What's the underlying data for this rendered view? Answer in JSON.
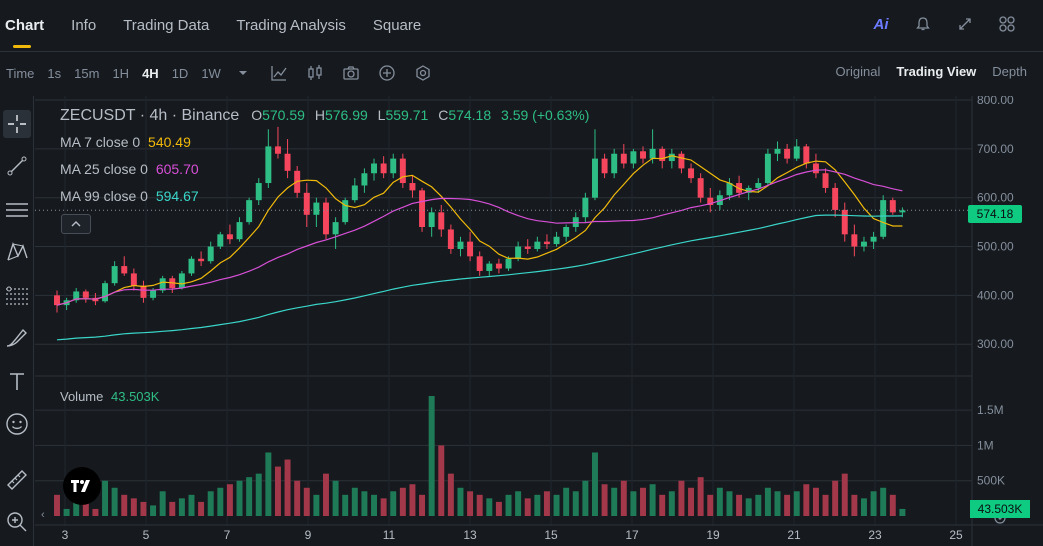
{
  "tabs": [
    {
      "label": "Chart",
      "active": true
    },
    {
      "label": "Info",
      "active": false
    },
    {
      "label": "Trading Data",
      "active": false
    },
    {
      "label": "Trading Analysis",
      "active": false
    },
    {
      "label": "Square",
      "active": false
    }
  ],
  "top_icons": {
    "ai_label": "Ai",
    "bell": "bell-icon",
    "expand": "expand-icon",
    "layout": "layout-icon"
  },
  "toolbar": {
    "intervals": [
      "Time",
      "1s",
      "15m",
      "1H",
      "4H",
      "1D",
      "1W"
    ],
    "active_interval": "4H",
    "views": [
      {
        "label": "Original",
        "active": false
      },
      {
        "label": "Trading View",
        "active": true
      },
      {
        "label": "Depth",
        "active": false
      }
    ]
  },
  "legend": {
    "symbol": "ZECUSDT · 4h · Binance",
    "open_label": "O",
    "open": "570.59",
    "high_label": "H",
    "high": "576.99",
    "low_label": "L",
    "low": "559.71",
    "close_label": "C",
    "close": "574.18",
    "change": "3.59 (+0.63%)",
    "ma7_label": "MA 7 close 0",
    "ma7": "540.49",
    "ma25_label": "MA 25 close 0",
    "ma25": "605.70",
    "ma99_label": "MA 99 close 0",
    "ma99": "594.67",
    "volume_label": "Volume",
    "volume": "43.503K"
  },
  "colors": {
    "up": "#2ebd85",
    "down": "#f6465d",
    "ma7": "#f0b90b",
    "ma25": "#d64fd6",
    "ma99": "#3ad5c8",
    "accent": "#f0b90b"
  },
  "price_tag": "574.18",
  "volume_tag": "43.503K",
  "chart_data": {
    "type": "candlestick",
    "price_axis": [
      "800.00",
      "700.00",
      "600.00",
      "500.00",
      "400.00",
      "300.00"
    ],
    "volume_axis": [
      "1.5M",
      "1M",
      "500K"
    ],
    "x_ticks": [
      "3",
      "5",
      "7",
      "9",
      "11",
      "13",
      "15",
      "17",
      "19",
      "21",
      "23",
      "25"
    ],
    "ylim": [
      280,
      800
    ],
    "current_price": 574.18,
    "candles": [
      [
        400,
        410,
        365,
        380
      ],
      [
        380,
        395,
        370,
        390
      ],
      [
        390,
        415,
        385,
        408
      ],
      [
        408,
        412,
        385,
        395
      ],
      [
        395,
        405,
        380,
        388
      ],
      [
        388,
        430,
        385,
        425
      ],
      [
        425,
        470,
        420,
        460
      ],
      [
        460,
        480,
        440,
        445
      ],
      [
        445,
        455,
        410,
        420
      ],
      [
        420,
        430,
        385,
        395
      ],
      [
        395,
        415,
        390,
        410
      ],
      [
        410,
        440,
        405,
        435
      ],
      [
        435,
        440,
        405,
        415
      ],
      [
        415,
        450,
        412,
        445
      ],
      [
        445,
        480,
        440,
        475
      ],
      [
        475,
        490,
        460,
        470
      ],
      [
        470,
        510,
        465,
        500
      ],
      [
        500,
        530,
        495,
        525
      ],
      [
        525,
        545,
        505,
        515
      ],
      [
        515,
        560,
        510,
        550
      ],
      [
        550,
        600,
        545,
        595
      ],
      [
        595,
        640,
        585,
        630
      ],
      [
        630,
        740,
        620,
        705
      ],
      [
        705,
        745,
        680,
        690
      ],
      [
        690,
        720,
        640,
        655
      ],
      [
        655,
        665,
        600,
        610
      ],
      [
        610,
        630,
        540,
        565
      ],
      [
        565,
        600,
        540,
        590
      ],
      [
        590,
        600,
        515,
        525
      ],
      [
        525,
        560,
        495,
        550
      ],
      [
        550,
        600,
        545,
        595
      ],
      [
        595,
        640,
        590,
        625
      ],
      [
        625,
        660,
        610,
        650
      ],
      [
        650,
        680,
        635,
        670
      ],
      [
        670,
        685,
        640,
        650
      ],
      [
        650,
        690,
        640,
        680
      ],
      [
        680,
        690,
        620,
        630
      ],
      [
        630,
        645,
        600,
        615
      ],
      [
        615,
        620,
        530,
        540
      ],
      [
        540,
        580,
        520,
        570
      ],
      [
        570,
        585,
        520,
        535
      ],
      [
        535,
        545,
        485,
        495
      ],
      [
        495,
        520,
        480,
        510
      ],
      [
        510,
        530,
        470,
        480
      ],
      [
        480,
        490,
        440,
        450
      ],
      [
        450,
        470,
        440,
        465
      ],
      [
        465,
        475,
        445,
        455
      ],
      [
        455,
        480,
        450,
        475
      ],
      [
        475,
        510,
        470,
        500
      ],
      [
        500,
        515,
        485,
        495
      ],
      [
        495,
        520,
        490,
        510
      ],
      [
        510,
        525,
        495,
        505
      ],
      [
        505,
        530,
        500,
        520
      ],
      [
        520,
        545,
        510,
        540
      ],
      [
        540,
        570,
        530,
        560
      ],
      [
        560,
        610,
        550,
        600
      ],
      [
        600,
        740,
        595,
        680
      ],
      [
        680,
        690,
        640,
        650
      ],
      [
        650,
        700,
        640,
        690
      ],
      [
        690,
        710,
        660,
        670
      ],
      [
        670,
        700,
        660,
        695
      ],
      [
        695,
        705,
        670,
        680
      ],
      [
        680,
        740,
        670,
        700
      ],
      [
        700,
        705,
        660,
        675
      ],
      [
        675,
        700,
        660,
        690
      ],
      [
        690,
        695,
        650,
        660
      ],
      [
        660,
        670,
        630,
        640
      ],
      [
        640,
        650,
        590,
        600
      ],
      [
        600,
        620,
        570,
        585
      ],
      [
        585,
        615,
        575,
        605
      ],
      [
        605,
        640,
        595,
        630
      ],
      [
        630,
        645,
        600,
        610
      ],
      [
        610,
        625,
        595,
        620
      ],
      [
        620,
        640,
        610,
        630
      ],
      [
        630,
        700,
        625,
        690
      ],
      [
        690,
        715,
        675,
        700
      ],
      [
        700,
        710,
        670,
        680
      ],
      [
        680,
        720,
        675,
        705
      ],
      [
        705,
        710,
        660,
        670
      ],
      [
        670,
        690,
        640,
        650
      ],
      [
        650,
        660,
        610,
        620
      ],
      [
        620,
        630,
        560,
        575
      ],
      [
        575,
        590,
        510,
        525
      ],
      [
        525,
        545,
        480,
        500
      ],
      [
        500,
        520,
        490,
        510
      ],
      [
        510,
        530,
        495,
        520
      ],
      [
        520,
        605,
        515,
        595
      ],
      [
        595,
        600,
        565,
        570
      ],
      [
        570,
        580,
        560,
        574
      ]
    ],
    "volumes": [
      0.3,
      0.1,
      0.2,
      0.3,
      0.1,
      0.5,
      0.4,
      0.3,
      0.25,
      0.2,
      0.15,
      0.35,
      0.2,
      0.25,
      0.3,
      0.2,
      0.35,
      0.4,
      0.45,
      0.5,
      0.55,
      0.6,
      0.9,
      0.7,
      0.8,
      0.5,
      0.4,
      0.3,
      0.6,
      0.5,
      0.3,
      0.4,
      0.35,
      0.3,
      0.25,
      0.35,
      0.4,
      0.45,
      0.3,
      1.7,
      1.0,
      0.6,
      0.4,
      0.35,
      0.3,
      0.25,
      0.2,
      0.3,
      0.35,
      0.25,
      0.3,
      0.35,
      0.3,
      0.4,
      0.35,
      0.5,
      0.9,
      0.45,
      0.4,
      0.5,
      0.35,
      0.4,
      0.45,
      0.3,
      0.35,
      0.5,
      0.4,
      0.55,
      0.3,
      0.4,
      0.35,
      0.3,
      0.25,
      0.3,
      0.4,
      0.35,
      0.3,
      0.35,
      0.45,
      0.4,
      0.3,
      0.5,
      0.6,
      0.3,
      0.25,
      0.35,
      0.4,
      0.3,
      0.1
    ]
  }
}
